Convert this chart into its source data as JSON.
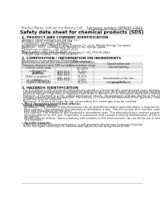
{
  "bg_color": "#ffffff",
  "header_left": "Product Name: Lithium Ion Battery Cell",
  "header_right_line1": "Substance number: 08PA389-00010",
  "header_right_line2": "Established / Revision: Dec.7,2016",
  "title": "Safety data sheet for chemical products (SDS)",
  "section1_title": "1. PRODUCT AND COMPANY IDENTIFICATION",
  "section1_lines": [
    "・Product name: Lithium Ion Battery Cell",
    "・Product code: Cylindrical-type cell",
    "   04186503, 04186502, 04186504",
    "・Company name:   Maxell Energy Devices Co., Ltd.  Mobile Energy Company",
    "・Address:   2221  Kamikatsura, Sumoto-City, Hyogo, Japan",
    "・Telephone number:   +81-799-26-4111",
    "・Fax number: +81-799-26-4120",
    "・Emergency telephone number (Weekdays) +81-799-26-2662",
    "   (Night and holiday) +81-799-26-4101"
  ],
  "section2_title": "2. COMPOSITION / INFORMATION ON INGREDIENTS",
  "section2_sub": "・Substance or preparation: Preparation",
  "section2_sub2": "・Information about the chemical nature of product:",
  "table_col_headers": [
    "Common chemical name",
    "CAS number",
    "Concentration /\nConcentration range\n(30-60%)",
    "Classification and\nhazard labeling"
  ],
  "table_rows": [
    [
      "Lithium cobalt oxide\n(LiMn-Co)(O2)",
      "-",
      "-",
      "-"
    ],
    [
      "Iron",
      "7439-89-6",
      "15-25%",
      "-"
    ],
    [
      "Aluminum",
      "7429-90-5",
      "2-5%",
      "-"
    ],
    [
      "Graphite\n(flake or graphite-1)\n(Artificial graphite)",
      "7782-42-5\n7782-44-0",
      "10-25%",
      "-"
    ],
    [
      "Copper",
      "7440-50-8",
      "5-10%",
      "Sensitization of the skin\ngroup R43"
    ],
    [
      "Organic electrolyte",
      "-",
      "10-25%",
      "Inflammable liquid"
    ]
  ],
  "section3_title": "3. HAZARDS IDENTIFICATION",
  "section3_para": [
    "For this battery cell, chemical materials are stored in a hermetically sealed metal case, designed to withstand",
    "temperatures and pressure environments during normal use. As a result, during normal use, there is no",
    "physical danger of ignition or explosion and there is almost no risk of battery electrolyte leakage.",
    "However, if exposed to a fire, added mechanical shocks, decomposed, without alarms of mis-use,",
    "the gas release cannot be operated. The battery cell case will be breached of fire particles, hazardous",
    "materials may be released.",
    "Moreover, if heated strongly by the surrounding fire, some gas may be emitted."
  ],
  "section3_bullet1": "• Most important hazard and effects:",
  "section3_human": "Human health effects:",
  "section3_human_lines": [
    "Inhalation: The release of the electrolyte has an anesthesia action and stimulates a respiratory tract.",
    "Skin contact: The release of the electrolyte stimulates a skin. The electrolyte skin contact causes a",
    "sore and stimulation on the skin.",
    "Eye contact: The release of the electrolyte stimulates eyes. The electrolyte eye contact causes a sore",
    "and stimulation on the eye. Especially, a substance that causes a strong inflammation of the eye is",
    "contained.",
    "Environmental effects: Since a battery cell remains in the environment, do not throw out it into the",
    "environment."
  ],
  "section3_specific": "• Specific hazards:",
  "section3_specific_lines": [
    "If the electrolyte contacts with water, it will generate deleterious hydrogen fluoride.",
    "Since the liquid electrolyte is inflammable liquid, do not bring close to fire."
  ]
}
